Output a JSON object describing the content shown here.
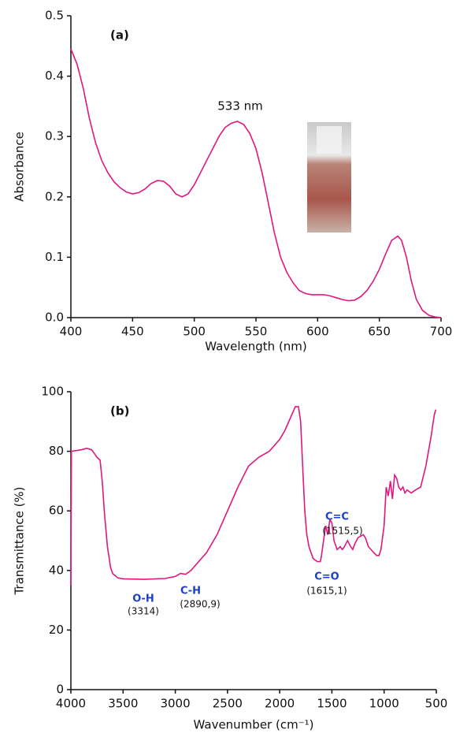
{
  "chart_data": [
    {
      "type": "line",
      "title": "(a)",
      "x_label": "Wavelength (nm)",
      "y_label": "Absorbance",
      "color": "#e0177f",
      "xlim": [
        400,
        700
      ],
      "ylim": [
        0,
        0.5
      ],
      "xticks": [
        400,
        450,
        500,
        550,
        600,
        650,
        700
      ],
      "yticks": [
        {
          "value": 0,
          "label": "0.0"
        },
        0.1,
        0.2,
        0.3,
        0.4,
        0.5
      ],
      "annotations": [
        "533 nm"
      ],
      "x": [
        400,
        405,
        410,
        415,
        420,
        425,
        430,
        435,
        440,
        445,
        450,
        455,
        460,
        465,
        470,
        475,
        480,
        485,
        490,
        495,
        500,
        505,
        510,
        515,
        520,
        525,
        530,
        535,
        540,
        545,
        550,
        555,
        560,
        565,
        570,
        575,
        580,
        585,
        590,
        595,
        600,
        605,
        610,
        615,
        620,
        625,
        630,
        635,
        640,
        645,
        650,
        655,
        660,
        665,
        668,
        672,
        676,
        680,
        685,
        690,
        695,
        700
      ],
      "values": [
        0.445,
        0.42,
        0.38,
        0.33,
        0.29,
        0.26,
        0.24,
        0.225,
        0.215,
        0.208,
        0.205,
        0.207,
        0.213,
        0.222,
        0.227,
        0.226,
        0.218,
        0.205,
        0.2,
        0.205,
        0.22,
        0.24,
        0.26,
        0.28,
        0.3,
        0.315,
        0.322,
        0.325,
        0.32,
        0.305,
        0.28,
        0.24,
        0.19,
        0.14,
        0.1,
        0.075,
        0.058,
        0.045,
        0.04,
        0.038,
        0.038,
        0.038,
        0.036,
        0.033,
        0.03,
        0.028,
        0.029,
        0.035,
        0.045,
        0.06,
        0.08,
        0.105,
        0.128,
        0.135,
        0.128,
        0.1,
        0.06,
        0.03,
        0.012,
        0.004,
        0.001,
        0
      ]
    },
    {
      "type": "line",
      "title": "(b)",
      "x_label": "Wavenumber (cm⁻¹)",
      "y_label": "Transmittance (%)",
      "color": "#e0177f",
      "xlim": [
        4000,
        500
      ],
      "ylim": [
        0,
        100
      ],
      "xticks": [
        4000,
        3500,
        3000,
        2500,
        2000,
        1500,
        1000,
        500
      ],
      "yticks": [
        0,
        20,
        40,
        60,
        80,
        100
      ],
      "annotations": [
        "O-H",
        "(3314)",
        "C-H",
        "(2890,9)",
        "C=C",
        "(1515,5)",
        "C=O",
        "(1615,1)"
      ],
      "x": [
        4000,
        3995,
        3900,
        3850,
        3800,
        3750,
        3720,
        3700,
        3680,
        3650,
        3620,
        3600,
        3550,
        3500,
        3300,
        3100,
        3000,
        2950,
        2900,
        2850,
        2800,
        2700,
        2600,
        2500,
        2400,
        2300,
        2200,
        2100,
        2000,
        1950,
        1900,
        1850,
        1820,
        1800,
        1780,
        1760,
        1740,
        1720,
        1700,
        1680,
        1640,
        1610,
        1600,
        1580,
        1560,
        1540,
        1520,
        1500,
        1480,
        1450,
        1420,
        1400,
        1380,
        1350,
        1320,
        1300,
        1280,
        1250,
        1200,
        1180,
        1150,
        1100,
        1070,
        1050,
        1030,
        1000,
        980,
        960,
        940,
        920,
        900,
        880,
        860,
        840,
        820,
        800,
        780,
        740,
        700,
        650,
        600,
        550,
        520,
        505
      ],
      "values": [
        35,
        80,
        80.5,
        81,
        80.5,
        78,
        77,
        70,
        60,
        48,
        41,
        39,
        37.5,
        37.2,
        37,
        37.3,
        38,
        39,
        38.7,
        40,
        42,
        46,
        52,
        60,
        68,
        75,
        78,
        80,
        84,
        87,
        91,
        95,
        95,
        90,
        75,
        60,
        52,
        48,
        46,
        44,
        43,
        43,
        45,
        50,
        55,
        52,
        57,
        56,
        50,
        47,
        48,
        47,
        48,
        50,
        48,
        47,
        49,
        51,
        52,
        51,
        48,
        46,
        45,
        45,
        47,
        55,
        68,
        65,
        70,
        64,
        72,
        71,
        68,
        67,
        68,
        66,
        67,
        66,
        67,
        68,
        75,
        85,
        92,
        94
      ]
    }
  ]
}
